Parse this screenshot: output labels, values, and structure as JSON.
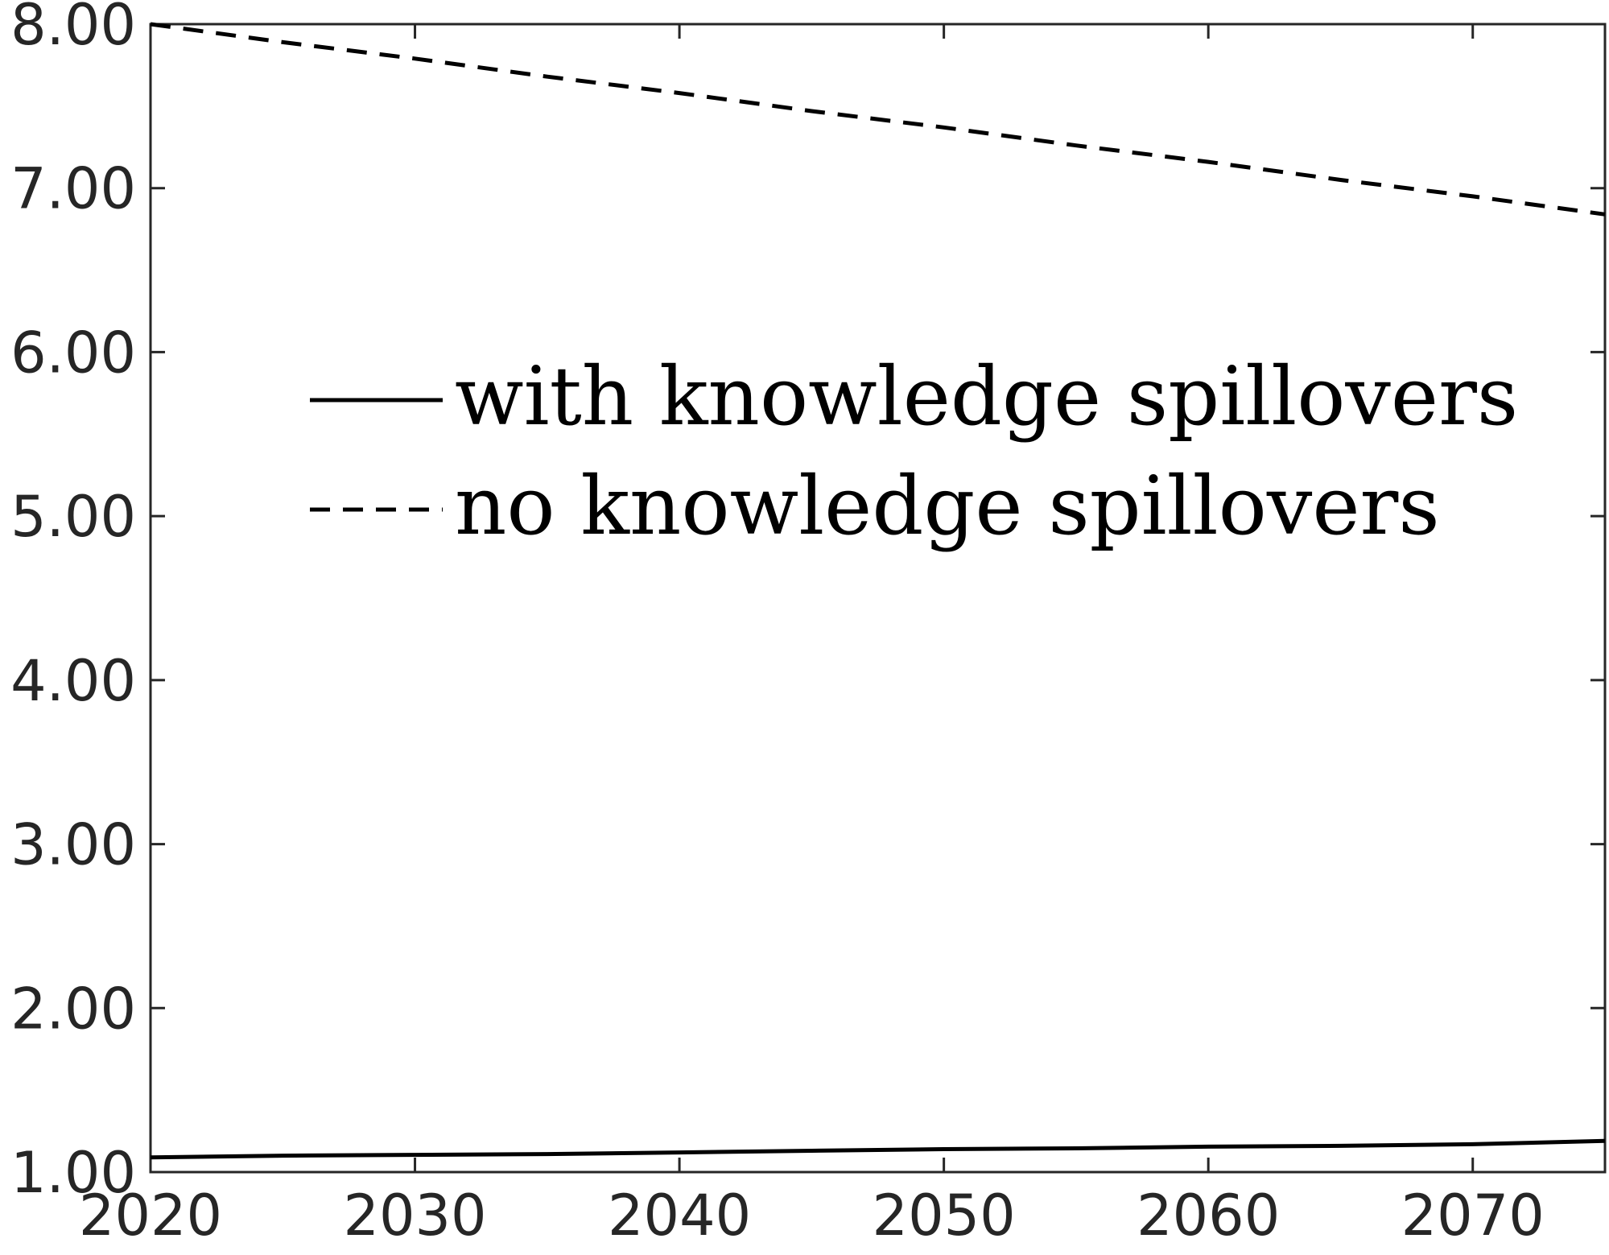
{
  "chart_data": {
    "type": "line",
    "title": "",
    "xlabel": "",
    "ylabel": "",
    "xlim": [
      2020,
      2075
    ],
    "ylim": [
      1.0,
      8.0
    ],
    "x_ticks": [
      "2020",
      "2030",
      "2040",
      "2050",
      "2060",
      "2070"
    ],
    "y_ticks": [
      "1.00",
      "2.00",
      "3.00",
      "4.00",
      "5.00",
      "6.00",
      "7.00",
      "8.00"
    ],
    "grid": false,
    "legend_placement": "upper-left-center",
    "x": [
      2020,
      2025,
      2030,
      2035,
      2040,
      2045,
      2050,
      2055,
      2060,
      2065,
      2070,
      2075
    ],
    "series": [
      {
        "name": "with knowledge spillovers",
        "style": "solid",
        "color": "#000000",
        "values": [
          1.09,
          1.1,
          1.105,
          1.11,
          1.12,
          1.13,
          1.14,
          1.145,
          1.155,
          1.16,
          1.17,
          1.19
        ]
      },
      {
        "name": "no knowledge spillovers",
        "style": "dashed",
        "color": "#000000",
        "values": [
          8.0,
          7.89,
          7.79,
          7.68,
          7.58,
          7.47,
          7.37,
          7.26,
          7.16,
          7.05,
          6.95,
          6.84
        ]
      }
    ]
  }
}
